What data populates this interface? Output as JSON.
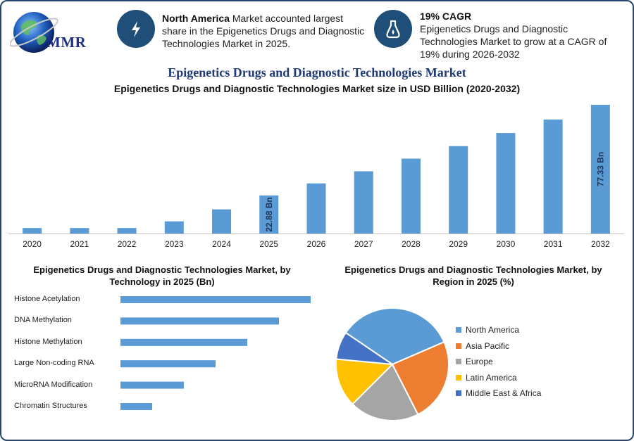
{
  "brand": {
    "logo_text": "MMR"
  },
  "highlights": [
    {
      "icon": "lightning-icon",
      "bold": "North America",
      "text": " Market accounted largest share in the Epigenetics Drugs and Diagnostic Technologies Market in 2025."
    },
    {
      "icon": "flask-icon",
      "bold": "19% CAGR",
      "text": "Epigenetics Drugs and Diagnostic Technologies Market to grow at a CAGR of 19% during 2026-2032"
    }
  ],
  "title": "Epigenetics Drugs and Diagnostic Technologies Market",
  "chart_data": [
    {
      "type": "bar",
      "title": "Epigenetics Drugs and Diagnostic Technologies Market size in USD Billion (2020-2032)",
      "categories": [
        "2020",
        "2021",
        "2022",
        "2023",
        "2024",
        "2025",
        "2026",
        "2027",
        "2028",
        "2029",
        "2030",
        "2031",
        "2032"
      ],
      "values": [
        3.3,
        3.3,
        3.3,
        7.3,
        14.5,
        22.88,
        30.1,
        37.4,
        45.0,
        52.5,
        60.4,
        68.5,
        77.33
      ],
      "data_labels": {
        "2025": "22.88 Bn",
        "2032": "77.33 Bn"
      },
      "ylim": [
        0,
        77.33
      ],
      "color": "#5b9bd5"
    },
    {
      "type": "bar",
      "orientation": "horizontal",
      "title": "Epigenetics Drugs and Diagnostic Technologies Market, by Technology in 2025 (Bn)",
      "categories": [
        "Histone Acetylation",
        "DNA Methylation",
        "Histone Methylation",
        "Large Non-coding RNA",
        "MicroRNA Modification",
        "Chromatin Structures"
      ],
      "values": [
        6,
        5,
        4,
        3,
        2,
        1
      ],
      "xlim": [
        0,
        6
      ],
      "color": "#5b9bd5"
    },
    {
      "type": "pie",
      "title": "Epigenetics Drugs and Diagnostic Technologies Market, by Region in 2025 (%)",
      "categories": [
        "North America",
        "Asia Pacific",
        "Europe",
        "Latin America",
        "Middle East & Africa"
      ],
      "values": [
        34,
        24,
        20,
        14,
        8
      ],
      "colors": [
        "#5b9bd5",
        "#ed7d31",
        "#a5a5a5",
        "#ffc000",
        "#4472c4"
      ],
      "legend": "right"
    }
  ]
}
